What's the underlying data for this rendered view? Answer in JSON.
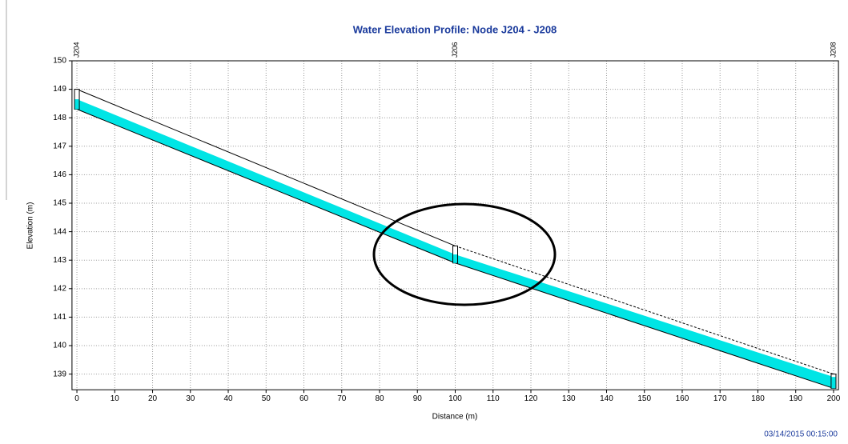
{
  "chart_data": {
    "type": "profile",
    "title": "Water Elevation Profile:  Node J204 - J208",
    "x_label": "Distance (m)",
    "y_label": "Elevation (m)",
    "timestamp": "03/14/2015 00:15:00",
    "nodes": [
      "J204",
      "J206",
      "J208"
    ],
    "x": [
      0,
      100,
      200
    ],
    "pipe_crown": [
      149.0,
      143.5,
      139.0
    ],
    "pipe_invert": [
      148.3,
      142.9,
      138.5
    ],
    "water_surface": [
      148.65,
      143.2,
      138.9
    ],
    "crown_style": [
      "solid",
      "dashed"
    ],
    "water_color": "#00e5e5",
    "xlim": [
      -1.3,
      201.3
    ],
    "ylim": [
      138.45,
      150
    ],
    "xticks": [
      0,
      10,
      20,
      30,
      40,
      50,
      60,
      70,
      80,
      90,
      100,
      110,
      120,
      130,
      140,
      150,
      160,
      170,
      180,
      190,
      200
    ],
    "yticks": [
      139,
      140,
      141,
      142,
      143,
      144,
      145,
      146,
      147,
      148,
      149,
      150
    ],
    "grid": true
  }
}
